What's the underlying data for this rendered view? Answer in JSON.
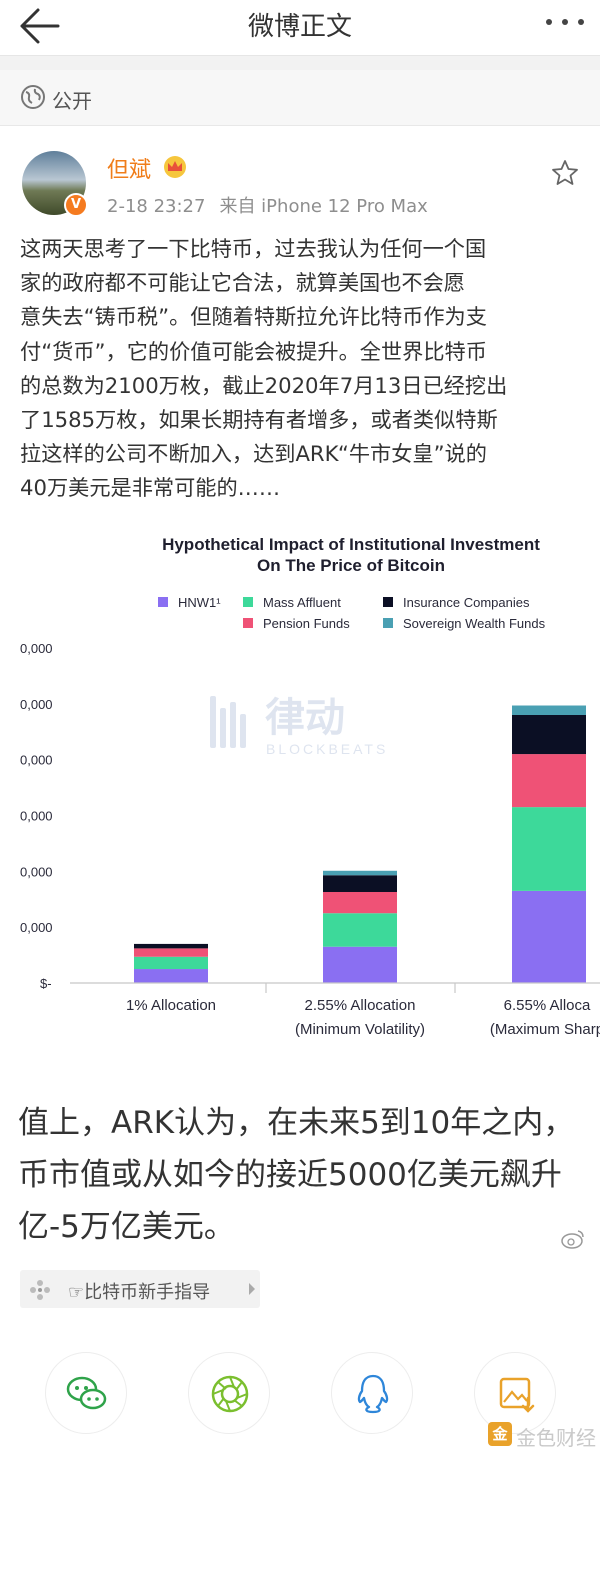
{
  "header": {
    "title": "微博正文"
  },
  "visibility": {
    "label": "公开"
  },
  "author": {
    "name": "但斌",
    "time": "2-18 23:27",
    "source": "来自 iPhone 12 Pro Max",
    "badge": "V"
  },
  "post": {
    "lines": [
      "这两天思考了一下比特币，过去我认为任何一个国",
      "家的政府都不可能让它合法，就算美国也不会愿",
      "意失去“铸币税”。但随着特斯拉允许比特币作为支",
      "付“货币”，它的价值可能会被提升。全世界比特币",
      "的总数为2100万枚，截止2020年7月13日已经挖出",
      "了1585万枚，如果长期持有者增多，或者类似特斯",
      "拉这样的公司不断加入，达到ARK“牛市女皇”说的",
      "40万美元是非常可能的……"
    ]
  },
  "image_text": {
    "lines": [
      "值上，ARK认为，在未来5到10年之内，",
      "币市值或从如今的接近5000亿美元飙升",
      "亿-5万亿美元。"
    ]
  },
  "watermark_center": {
    "cn": "律动",
    "en": "BLOCKBEATS"
  },
  "chart_data": {
    "type": "bar",
    "stacked": true,
    "title": "Hypothetical Impact of Institutional Investment",
    "subtitle": "On The Price of Bitcoin",
    "categories": [
      "1% Allocation",
      "2.55% Allocation",
      "6.55% Alloca"
    ],
    "category_sublabels": [
      "",
      "(Minimum Volatility)",
      "(Maximum Sharp"
    ],
    "y_tick_labels": [
      "$-",
      "0,000",
      "0,000",
      "0,000",
      "0,000",
      "0,000",
      "0,000"
    ],
    "ylim": [
      0,
      6
    ],
    "grid": false,
    "legend_position": "top",
    "series": [
      {
        "name": "HNW1¹",
        "color": "#8a6ff2",
        "values": [
          0.25,
          0.65,
          1.65
        ]
      },
      {
        "name": "Mass Affluent",
        "color": "#3dd99a",
        "values": [
          0.22,
          0.6,
          1.5
        ]
      },
      {
        "name": "Pension Funds",
        "color": "#ef5276",
        "values": [
          0.15,
          0.38,
          0.95
        ]
      },
      {
        "name": "Insurance Companies",
        "color": "#0b0f24",
        "values": [
          0.08,
          0.3,
          0.7
        ]
      },
      {
        "name": "Sovereign Wealth Funds",
        "color": "#4aa0b3",
        "values": [
          0.0,
          0.08,
          0.17
        ]
      }
    ]
  },
  "topic": {
    "label": "☞比特币新手指导"
  },
  "share": {
    "items": [
      {
        "name": "wechat-icon",
        "color": "#2fa34a"
      },
      {
        "name": "moments-icon",
        "color": "#7bbf2f"
      },
      {
        "name": "qq-icon",
        "color": "#2e86d9"
      },
      {
        "name": "save-image-icon",
        "color": "#e9a22a"
      }
    ]
  },
  "footer_watermark": {
    "box": "金",
    "text": "金色财经"
  }
}
